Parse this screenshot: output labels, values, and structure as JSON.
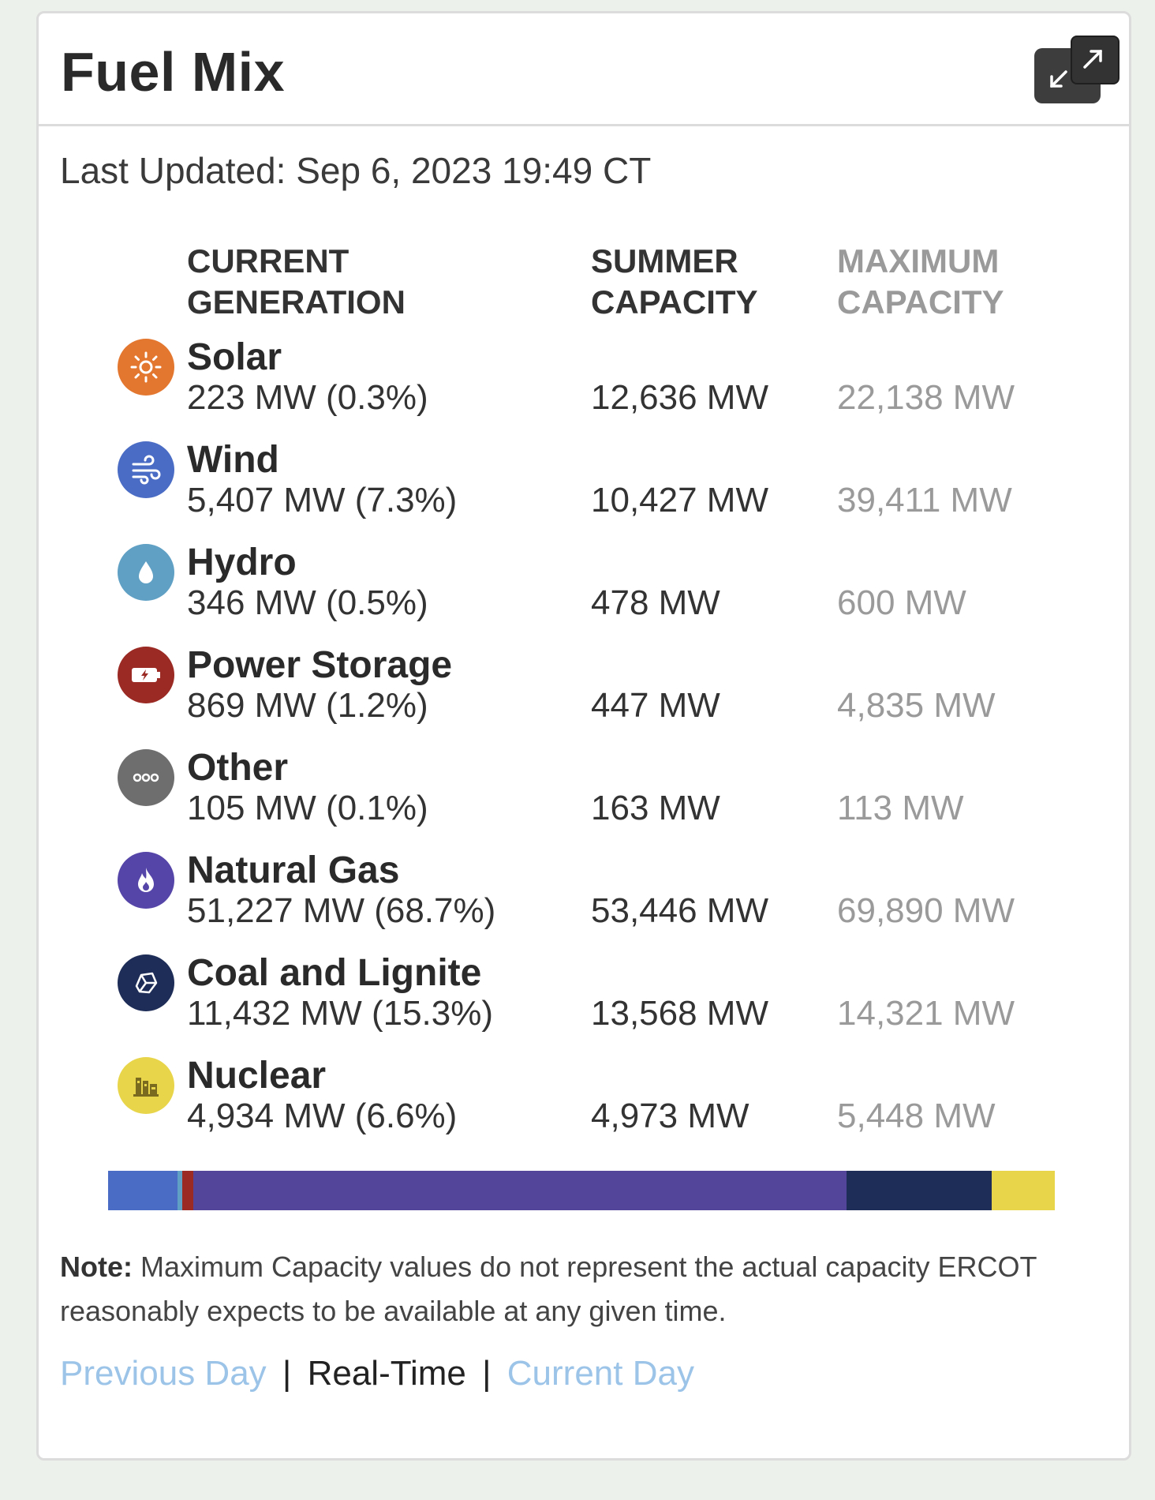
{
  "header": {
    "title": "Fuel Mix"
  },
  "last_updated": "Last Updated: Sep 6, 2023 19:49 CT",
  "columns": {
    "current": [
      "CURRENT",
      "GENERATION"
    ],
    "summer": [
      "SUMMER",
      "CAPACITY"
    ],
    "maximum": [
      "MAXIMUM",
      "CAPACITY"
    ]
  },
  "fuels": [
    {
      "name": "Solar",
      "generation": "223 MW (0.3%)",
      "summer": "12,636 MW",
      "maximum": "22,138 MW",
      "icon": "sun-icon",
      "color": "#e3772f"
    },
    {
      "name": "Wind",
      "generation": "5,407 MW (7.3%)",
      "summer": "10,427 MW",
      "maximum": "39,411 MW",
      "icon": "wind-icon",
      "color": "#4a6cc4"
    },
    {
      "name": "Hydro",
      "generation": "346 MW (0.5%)",
      "summer": "478 MW",
      "maximum": "600 MW",
      "icon": "water-drop-icon",
      "color": "#5fa0c4"
    },
    {
      "name": "Power Storage",
      "generation": "869 MW (1.2%)",
      "summer": "447 MW",
      "maximum": "4,835 MW",
      "icon": "battery-icon",
      "color": "#9a2a23"
    },
    {
      "name": "Other",
      "generation": "105 MW (0.1%)",
      "summer": "163 MW",
      "maximum": "113 MW",
      "icon": "ellipsis-icon",
      "color": "#6e6e6e"
    },
    {
      "name": "Natural Gas",
      "generation": "51,227 MW (68.7%)",
      "summer": "53,446 MW",
      "maximum": "69,890 MW",
      "icon": "flame-icon",
      "color": "#5545a8"
    },
    {
      "name": "Coal and Lignite",
      "generation": "11,432 MW (15.3%)",
      "summer": "13,568 MW",
      "maximum": "14,321 MW",
      "icon": "coal-icon",
      "color": "#1e2d57"
    },
    {
      "name": "Nuclear",
      "generation": "4,934 MW (6.6%)",
      "summer": "4,973 MW",
      "maximum": "5,448 MW",
      "icon": "nuclear-plant-icon",
      "color": "#e8d54a"
    }
  ],
  "mix_bar": [
    {
      "fuel": "Wind",
      "share": 7.3,
      "color": "#4a6cc4"
    },
    {
      "fuel": "Hydro",
      "share": 0.5,
      "color": "#5fa0c4"
    },
    {
      "fuel": "Power Storage",
      "share": 1.2,
      "color": "#9a2a23"
    },
    {
      "fuel": "Natural Gas",
      "share": 68.7,
      "color": "#52459a"
    },
    {
      "fuel": "Coal and Lignite",
      "share": 15.3,
      "color": "#1e2d57"
    },
    {
      "fuel": "Nuclear",
      "share": 6.6,
      "color": "#e8d54a"
    }
  ],
  "note": {
    "label": "Note:",
    "text": " Maximum Capacity values do not represent the actual capacity ERCOT reasonably expects to be available at any given time."
  },
  "links": {
    "previous": "Previous Day",
    "separator": "|",
    "realtime": "Real-Time",
    "current": "Current Day"
  }
}
